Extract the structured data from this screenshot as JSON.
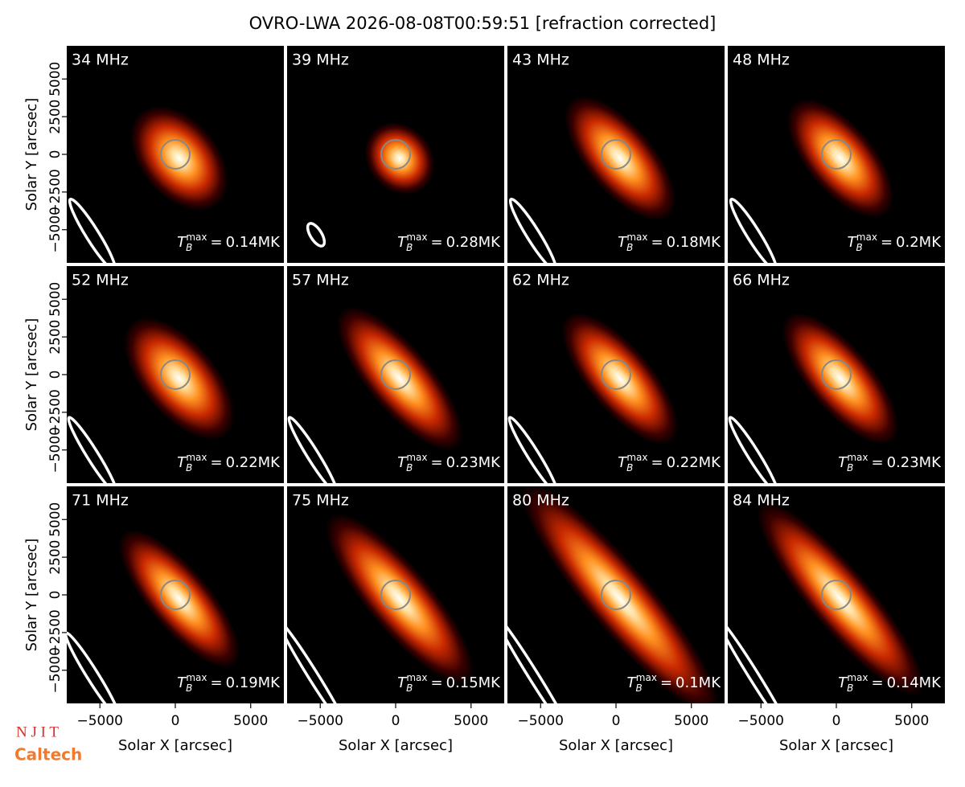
{
  "title": "OVRO-LWA 2026-08-08T00:59:51 [refraction corrected]",
  "tb_symbol": {
    "base": "T",
    "sub": "B",
    "sup": "max",
    "eq": "="
  },
  "logos": [
    "N J I T",
    "Caltech"
  ],
  "chart_data": [
    {
      "type": "image",
      "label": "34 MHz",
      "tb_max_label": "0.14MK",
      "xlim": [
        -7200,
        7200
      ],
      "ylim": [
        -7200,
        7200
      ],
      "ylabel": "Solar Y [arcsec]",
      "yticks": [
        {
          "value": -5000,
          "label": "−5000"
        },
        {
          "value": -2500,
          "label": "−2500"
        },
        0,
        2500,
        5000
      ]
    },
    {
      "type": "image",
      "label": "39 MHz",
      "tb_max_label": "0.28MK",
      "xlim": [
        -7200,
        7200
      ],
      "ylim": [
        -7200,
        7200
      ]
    },
    {
      "type": "image",
      "label": "43 MHz",
      "tb_max_label": "0.18MK",
      "xlim": [
        -7200,
        7200
      ],
      "ylim": [
        -7200,
        7200
      ]
    },
    {
      "type": "image",
      "label": "48 MHz",
      "tb_max_label": "0.2MK",
      "xlim": [
        -7200,
        7200
      ],
      "ylim": [
        -7200,
        7200
      ]
    },
    {
      "type": "image",
      "label": "52 MHz",
      "tb_max_label": "0.22MK",
      "xlim": [
        -7200,
        7200
      ],
      "ylim": [
        -7200,
        7200
      ],
      "ylabel": "Solar Y [arcsec]",
      "yticks": [
        {
          "value": -5000,
          "label": "−5000"
        },
        {
          "value": -2500,
          "label": "−2500"
        },
        0,
        2500,
        5000
      ]
    },
    {
      "type": "image",
      "label": "57 MHz",
      "tb_max_label": "0.23MK",
      "xlim": [
        -7200,
        7200
      ],
      "ylim": [
        -7200,
        7200
      ]
    },
    {
      "type": "image",
      "label": "62 MHz",
      "tb_max_label": "0.22MK",
      "xlim": [
        -7200,
        7200
      ],
      "ylim": [
        -7200,
        7200
      ]
    },
    {
      "type": "image",
      "label": "66 MHz",
      "tb_max_label": "0.23MK",
      "xlim": [
        -7200,
        7200
      ],
      "ylim": [
        -7200,
        7200
      ]
    },
    {
      "type": "image",
      "label": "71 MHz",
      "tb_max_label": "0.19MK",
      "xlim": [
        -7200,
        7200
      ],
      "ylim": [
        -7200,
        7200
      ],
      "ylabel": "Solar Y [arcsec]",
      "yticks": [
        {
          "value": -5000,
          "label": "−5000"
        },
        {
          "value": -2500,
          "label": "−2500"
        },
        0,
        2500,
        5000
      ],
      "xlabel": "Solar X [arcsec]",
      "xticks": [
        {
          "value": -5000,
          "label": "−5000"
        },
        0,
        5000
      ]
    },
    {
      "type": "image",
      "label": "75 MHz",
      "tb_max_label": "0.15MK",
      "xlim": [
        -7200,
        7200
      ],
      "ylim": [
        -7200,
        7200
      ],
      "xlabel": "Solar X [arcsec]",
      "xticks": [
        {
          "value": -5000,
          "label": "−5000"
        },
        0,
        5000
      ]
    },
    {
      "type": "image",
      "label": "80 MHz",
      "tb_max_label": "0.1MK",
      "xlim": [
        -7200,
        7200
      ],
      "ylim": [
        -7200,
        7200
      ],
      "xlabel": "Solar X [arcsec]",
      "xticks": [
        {
          "value": -5000,
          "label": "−5000"
        },
        0,
        5000
      ]
    },
    {
      "type": "image",
      "label": "84 MHz",
      "tb_max_label": "0.14MK",
      "xlim": [
        -7200,
        7200
      ],
      "ylim": [
        -7200,
        7200
      ],
      "xlabel": "Solar X [arcsec]",
      "xticks": [
        {
          "value": -5000,
          "label": "−5000"
        },
        0,
        5000
      ]
    }
  ]
}
